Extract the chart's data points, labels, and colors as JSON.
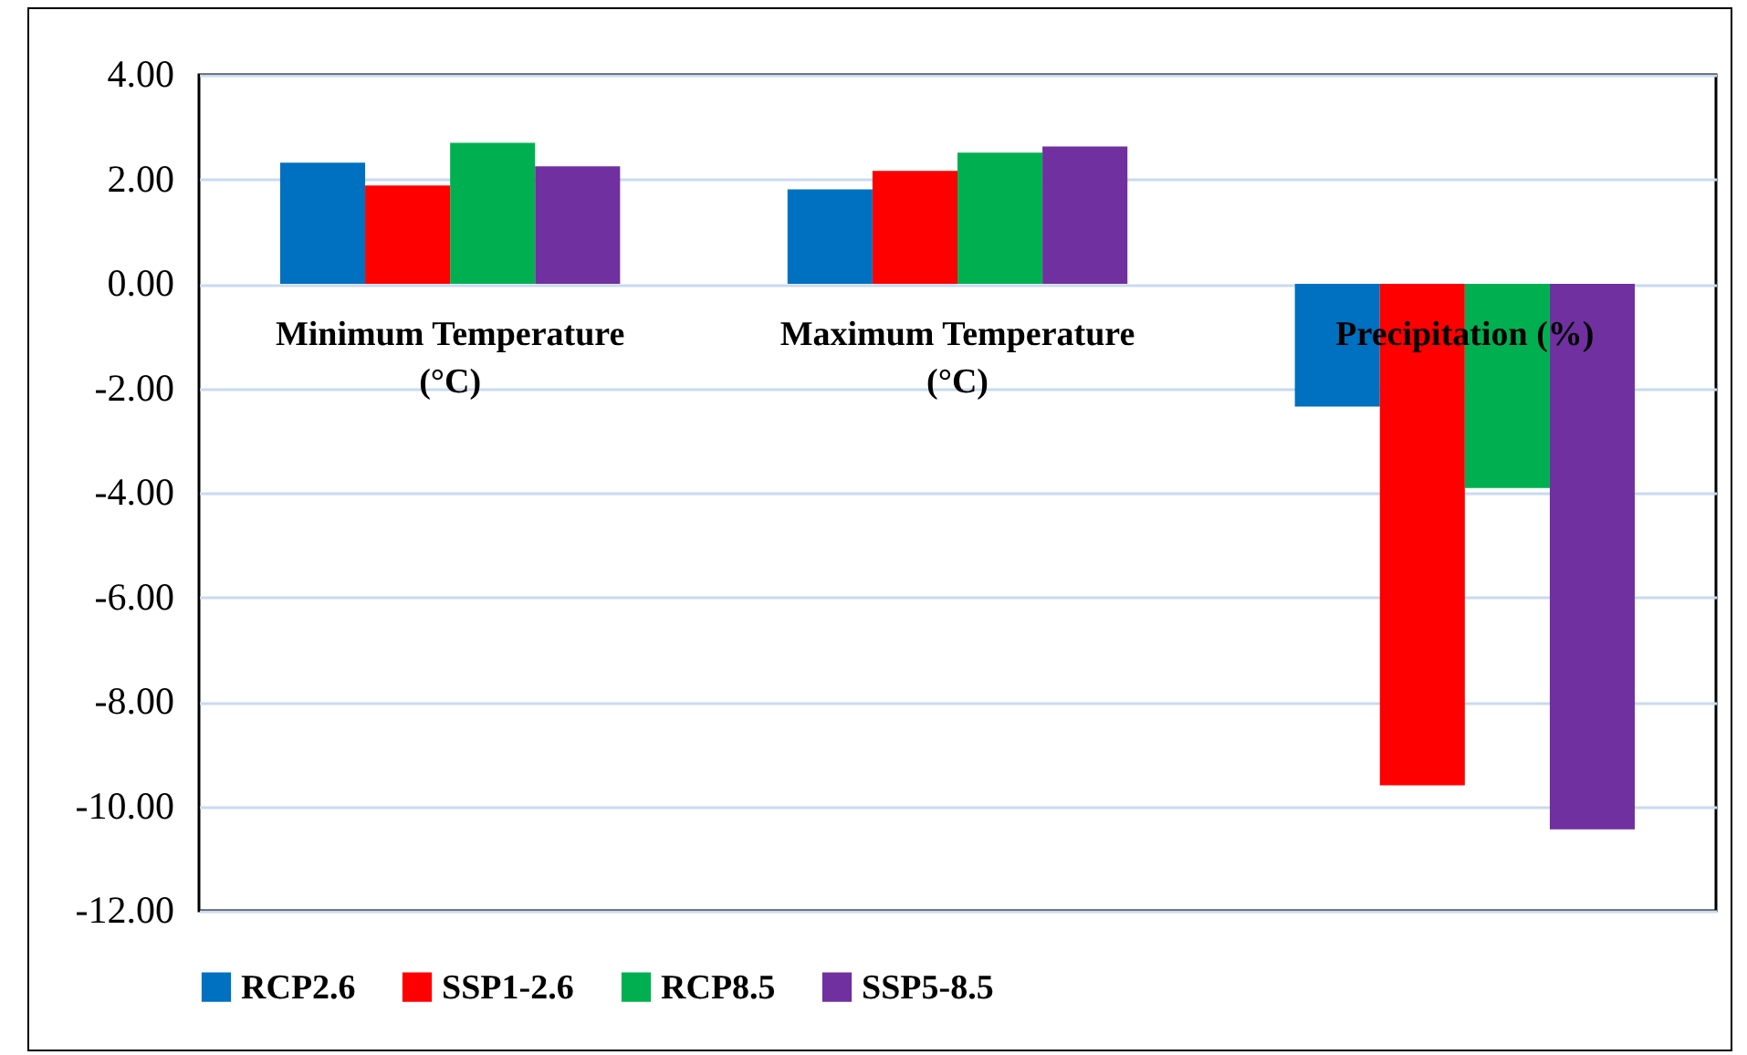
{
  "chart_data": {
    "type": "bar",
    "categories": [
      "Minimum Temperature (°C)",
      "Maximum Temperature (°C)",
      "Precipitation (%)"
    ],
    "series": [
      {
        "name": "RCP2.6",
        "color": "#0070c0",
        "values": [
          2.32,
          1.81,
          -2.35
        ]
      },
      {
        "name": "SSP1-2.6",
        "color": "#ff0000",
        "values": [
          1.88,
          2.16,
          -9.6
        ]
      },
      {
        "name": "RCP8.5",
        "color": "#00b050",
        "values": [
          2.7,
          2.51,
          -3.91
        ]
      },
      {
        "name": "SSP5-8.5",
        "color": "#7030a0",
        "values": [
          2.25,
          2.63,
          -10.44
        ]
      }
    ],
    "ylim": [
      -12,
      4
    ],
    "yticks": [
      {
        "value": -12,
        "label": "-12.00"
      },
      {
        "value": -10,
        "label": "-10.00"
      },
      {
        "value": -8,
        "label": "-8.00"
      },
      {
        "value": -6,
        "label": "-6.00"
      },
      {
        "value": -4,
        "label": "-4.00"
      },
      {
        "value": -2,
        "label": "-2.00"
      },
      {
        "value": 0,
        "label": "0.00"
      },
      {
        "value": 2,
        "label": "2.00"
      },
      {
        "value": 4,
        "label": "4.00"
      }
    ],
    "grid": "y",
    "legend": "bottom"
  }
}
